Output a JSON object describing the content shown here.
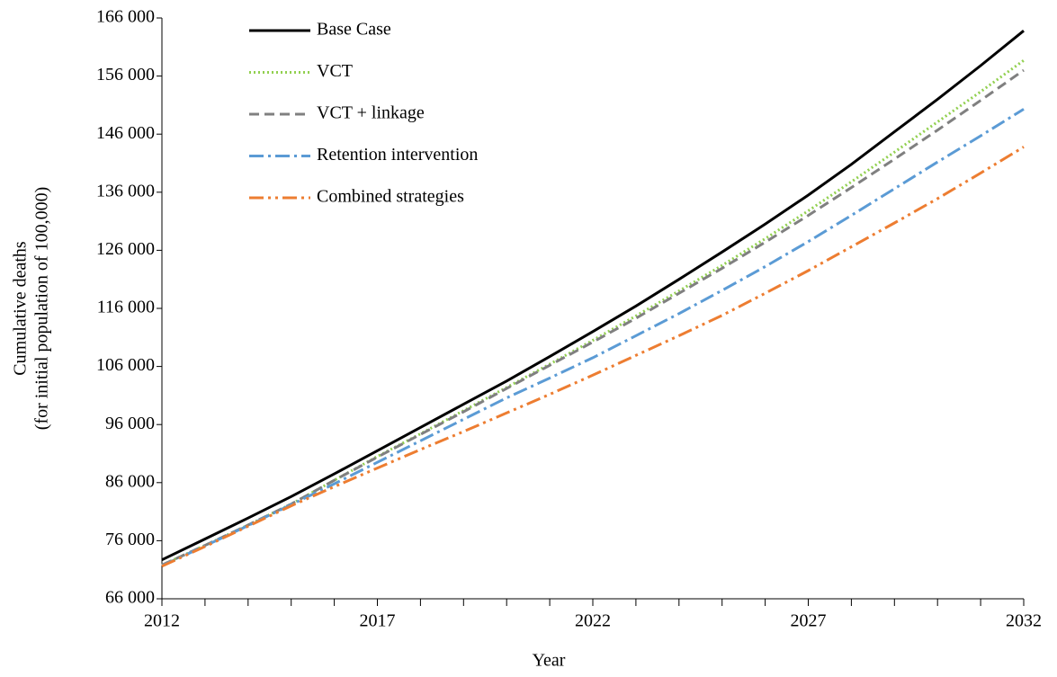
{
  "chart_data": {
    "type": "line",
    "x_label": "Year",
    "y_label": [
      "Cumulative deaths",
      "(for initial population of 100,000)"
    ],
    "x": [
      2012,
      2013,
      2014,
      2015,
      2016,
      2017,
      2018,
      2019,
      2020,
      2021,
      2022,
      2023,
      2024,
      2025,
      2026,
      2027,
      2028,
      2029,
      2030,
      2031,
      2032
    ],
    "xlim": [
      2012,
      2032
    ],
    "xticks": [
      2012,
      2017,
      2022,
      2027,
      2032
    ],
    "ylim": [
      66000,
      166000
    ],
    "yticks": [
      {
        "value": 66000,
        "label": "66 000"
      },
      {
        "value": 76000,
        "label": "76 000"
      },
      {
        "value": 86000,
        "label": "86 000"
      },
      {
        "value": 96000,
        "label": "96 000"
      },
      {
        "value": 106000,
        "label": "106 000"
      },
      {
        "value": 116000,
        "label": "116 000"
      },
      {
        "value": 126000,
        "label": "126 000"
      },
      {
        "value": 136000,
        "label": "136 000"
      },
      {
        "value": 146000,
        "label": "146 000"
      },
      {
        "value": 156000,
        "label": "156 000"
      },
      {
        "value": 166000,
        "label": "166 000"
      }
    ],
    "grid": false,
    "legend": "top-left",
    "series": [
      {
        "name": "Base Case",
        "color": "#000000",
        "dash": "solid",
        "values": [
          72700,
          76300,
          79900,
          83600,
          87500,
          91500,
          95500,
          99500,
          103500,
          107700,
          112000,
          116400,
          121000,
          125700,
          130500,
          135500,
          140800,
          146400,
          152000,
          157800,
          163800
        ]
      },
      {
        "name": "VCT",
        "color": "#92d050",
        "dash": "dotted",
        "values": [
          71800,
          75200,
          78700,
          82300,
          86400,
          90500,
          94400,
          98400,
          102400,
          106400,
          110500,
          114700,
          119000,
          123400,
          128000,
          132800,
          137800,
          142900,
          148100,
          153300,
          158700
        ]
      },
      {
        "name": "VCT + linkage",
        "color": "#808080",
        "dash": "dashed",
        "values": [
          71800,
          75200,
          78700,
          82300,
          86400,
          90400,
          94300,
          98200,
          102200,
          106200,
          110200,
          114300,
          118600,
          122900,
          127400,
          132000,
          136800,
          141700,
          146700,
          151800,
          157000
        ]
      },
      {
        "name": "Retention intervention",
        "color": "#5b9bd5",
        "dash": "dash-dot",
        "values": [
          71700,
          75100,
          78600,
          82200,
          85800,
          89500,
          93200,
          96900,
          100600,
          104000,
          107500,
          111300,
          115100,
          119100,
          123200,
          127500,
          132000,
          136600,
          141200,
          145700,
          150300
        ]
      },
      {
        "name": "Combined strategies",
        "color": "#ed7d31",
        "dash": "dash-dot-dot",
        "values": [
          71600,
          75000,
          78500,
          82000,
          85300,
          88500,
          91700,
          94800,
          98000,
          101200,
          104500,
          107900,
          111300,
          114800,
          118600,
          122500,
          126600,
          130700,
          134900,
          139300,
          143800
        ]
      }
    ]
  }
}
